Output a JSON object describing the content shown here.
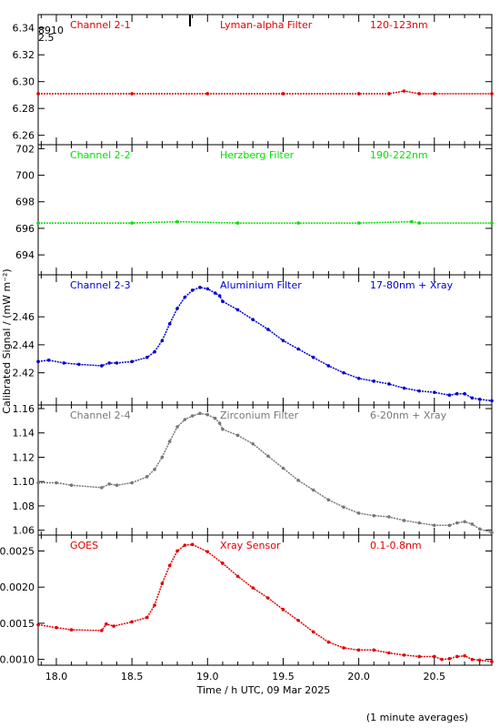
{
  "chart_data": {
    "type": "line",
    "xlabel": "Time / h UTC, 09 Mar 2025",
    "ylabel": "Calibrated Signal / (mW m⁻²)",
    "footnote": "(1 minute averages)",
    "xlim": [
      17.88,
      20.88
    ],
    "xticks": [
      18.0,
      18.5,
      19.0,
      19.5,
      20.0,
      20.5
    ],
    "xtick_labels": [
      "18.0",
      "18.5",
      "19.0",
      "19.5",
      "20.0",
      "20.5"
    ],
    "panels": [
      {
        "channel": "Channel 2-1",
        "filter": "Lyman-alpha Filter",
        "band": "120-123nm",
        "color": "#e00000",
        "ylim": [
          6.253,
          6.35
        ],
        "yticks": [
          6.26,
          6.28,
          6.3,
          6.32,
          6.34
        ],
        "ytick_labels": [
          "6.26",
          "6.28",
          "6.30",
          "6.32",
          "6.34"
        ],
        "corner_marks": [
          "8910",
          "2.5"
        ],
        "series": {
          "x": [
            17.88,
            18.5,
            19.0,
            19.5,
            20.0,
            20.2,
            20.3,
            20.4,
            20.5,
            20.88
          ],
          "y": [
            6.291,
            6.291,
            6.291,
            6.291,
            6.291,
            6.291,
            6.293,
            6.291,
            6.291,
            6.291
          ]
        }
      },
      {
        "channel": "Channel 2-2",
        "filter": "Herzberg Filter",
        "band": "190-222nm",
        "color": "#00e000",
        "ylim": [
          692.5,
          702.3
        ],
        "yticks": [
          694,
          696,
          698,
          700,
          702
        ],
        "ytick_labels": [
          "694",
          "696",
          "698",
          "700",
          "702"
        ],
        "series": {
          "x": [
            17.88,
            18.5,
            18.8,
            19.2,
            19.6,
            20.0,
            20.35,
            20.4,
            20.88
          ],
          "y": [
            696.4,
            696.4,
            696.5,
            696.4,
            696.4,
            696.4,
            696.5,
            696.4,
            696.4
          ]
        }
      },
      {
        "channel": "Channel 2-3",
        "filter": "Aluminium Filter",
        "band": "17-80nm + Xray",
        "color": "#0000d0",
        "ylim": [
          2.397,
          2.49
        ],
        "yticks": [
          2.42,
          2.44,
          2.46
        ],
        "ytick_labels": [
          "2.42",
          "2.44",
          "2.46"
        ],
        "series": {
          "x": [
            17.88,
            17.95,
            18.05,
            18.15,
            18.3,
            18.35,
            18.4,
            18.5,
            18.6,
            18.65,
            18.7,
            18.75,
            18.8,
            18.85,
            18.9,
            18.95,
            19.0,
            19.05,
            19.08,
            19.1,
            19.2,
            19.3,
            19.4,
            19.5,
            19.6,
            19.7,
            19.8,
            19.9,
            20.0,
            20.1,
            20.2,
            20.3,
            20.4,
            20.5,
            20.6,
            20.65,
            20.7,
            20.75,
            20.8,
            20.88
          ],
          "y": [
            2.428,
            2.429,
            2.427,
            2.426,
            2.425,
            2.427,
            2.427,
            2.428,
            2.431,
            2.435,
            2.443,
            2.455,
            2.466,
            2.474,
            2.479,
            2.481,
            2.48,
            2.477,
            2.475,
            2.471,
            2.465,
            2.458,
            2.451,
            2.443,
            2.437,
            2.431,
            2.425,
            2.42,
            2.416,
            2.414,
            2.412,
            2.409,
            2.407,
            2.406,
            2.404,
            2.405,
            2.405,
            2.402,
            2.401,
            2.4
          ]
        }
      },
      {
        "channel": "Channel 2-4",
        "filter": "Zirconium Filter",
        "band": "6-20nm + Xray",
        "color": "#777777",
        "ylim": [
          1.056,
          1.163
        ],
        "yticks": [
          1.06,
          1.08,
          1.1,
          1.12,
          1.14,
          1.16
        ],
        "ytick_labels": [
          "1.06",
          "1.08",
          "1.10",
          "1.12",
          "1.14",
          "1.16"
        ],
        "series": {
          "x": [
            17.88,
            18.0,
            18.1,
            18.3,
            18.35,
            18.4,
            18.5,
            18.6,
            18.65,
            18.7,
            18.75,
            18.8,
            18.85,
            18.9,
            18.95,
            19.0,
            19.05,
            19.08,
            19.1,
            19.2,
            19.3,
            19.4,
            19.5,
            19.6,
            19.7,
            19.8,
            19.9,
            20.0,
            20.1,
            20.2,
            20.3,
            20.4,
            20.5,
            20.6,
            20.65,
            20.7,
            20.75,
            20.8,
            20.88
          ],
          "y": [
            1.099,
            1.099,
            1.097,
            1.095,
            1.098,
            1.097,
            1.099,
            1.104,
            1.11,
            1.12,
            1.133,
            1.145,
            1.151,
            1.154,
            1.156,
            1.155,
            1.152,
            1.148,
            1.143,
            1.138,
            1.131,
            1.121,
            1.111,
            1.101,
            1.093,
            1.085,
            1.079,
            1.074,
            1.072,
            1.071,
            1.068,
            1.066,
            1.064,
            1.064,
            1.066,
            1.067,
            1.065,
            1.061,
            1.058
          ]
        }
      },
      {
        "channel": "GOES",
        "filter": "Xray Sensor",
        "band": "0.1-0.8nm",
        "color": "#e00000",
        "ylim": [
          0.00092,
          0.00272
        ],
        "yticks": [
          0.001,
          0.0015,
          0.002,
          0.0025
        ],
        "ytick_labels": [
          "0.0010",
          "0.0015",
          "0.0020",
          "0.0025"
        ],
        "series": {
          "x": [
            17.88,
            18.0,
            18.1,
            18.3,
            18.33,
            18.38,
            18.5,
            18.6,
            18.65,
            18.7,
            18.75,
            18.8,
            18.85,
            18.9,
            19.0,
            19.1,
            19.2,
            19.3,
            19.4,
            19.5,
            19.6,
            19.7,
            19.8,
            19.9,
            20.0,
            20.1,
            20.2,
            20.3,
            20.4,
            20.5,
            20.55,
            20.6,
            20.65,
            20.7,
            20.75,
            20.8,
            20.88
          ],
          "y": [
            0.00148,
            0.00144,
            0.00141,
            0.0014,
            0.00149,
            0.00146,
            0.00152,
            0.00158,
            0.00175,
            0.00205,
            0.0023,
            0.0025,
            0.00258,
            0.00259,
            0.00249,
            0.00233,
            0.00215,
            0.00199,
            0.00185,
            0.00169,
            0.00154,
            0.00138,
            0.00124,
            0.00116,
            0.00113,
            0.00113,
            0.00109,
            0.00106,
            0.00104,
            0.00104,
            0.001,
            0.00101,
            0.00104,
            0.00105,
            0.001,
            0.00099,
            0.00097
          ]
        }
      }
    ]
  }
}
